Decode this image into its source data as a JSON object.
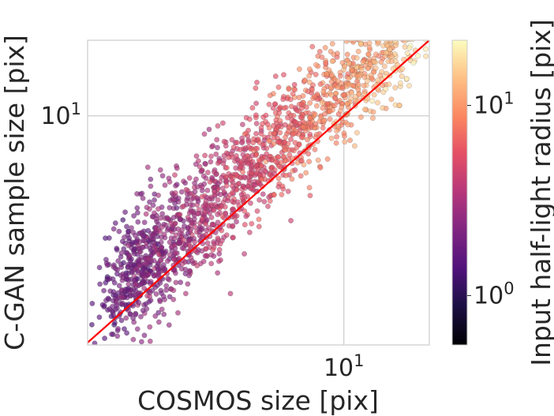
{
  "chart_data": {
    "type": "scatter",
    "xlabel": "COSMOS size [pix]",
    "ylabel": "C-GAN sample size [pix]",
    "xscale": "log",
    "yscale": "log",
    "xlim": [
      1.58,
      18.5
    ],
    "ylim": [
      1.55,
      18.5
    ],
    "grid": true,
    "x_ticks": [
      {
        "value": 10,
        "base": "10",
        "exp": "1"
      }
    ],
    "y_ticks": [
      {
        "value": 10,
        "base": "10",
        "exp": "1"
      }
    ],
    "reference_line": {
      "label": "y = x",
      "color": "#ff0000"
    },
    "colorbar": {
      "label": "Input half-light radius [pix]",
      "scale": "log",
      "range": [
        0.55,
        22
      ],
      "colormap": "magma",
      "ticks": [
        {
          "value": 1,
          "base": "10",
          "exp": "0"
        },
        {
          "value": 10,
          "base": "10",
          "exp": "1"
        }
      ]
    },
    "point_count": 1800,
    "trend": "points scatter around y = x; color (input half-light radius) increases with size"
  }
}
